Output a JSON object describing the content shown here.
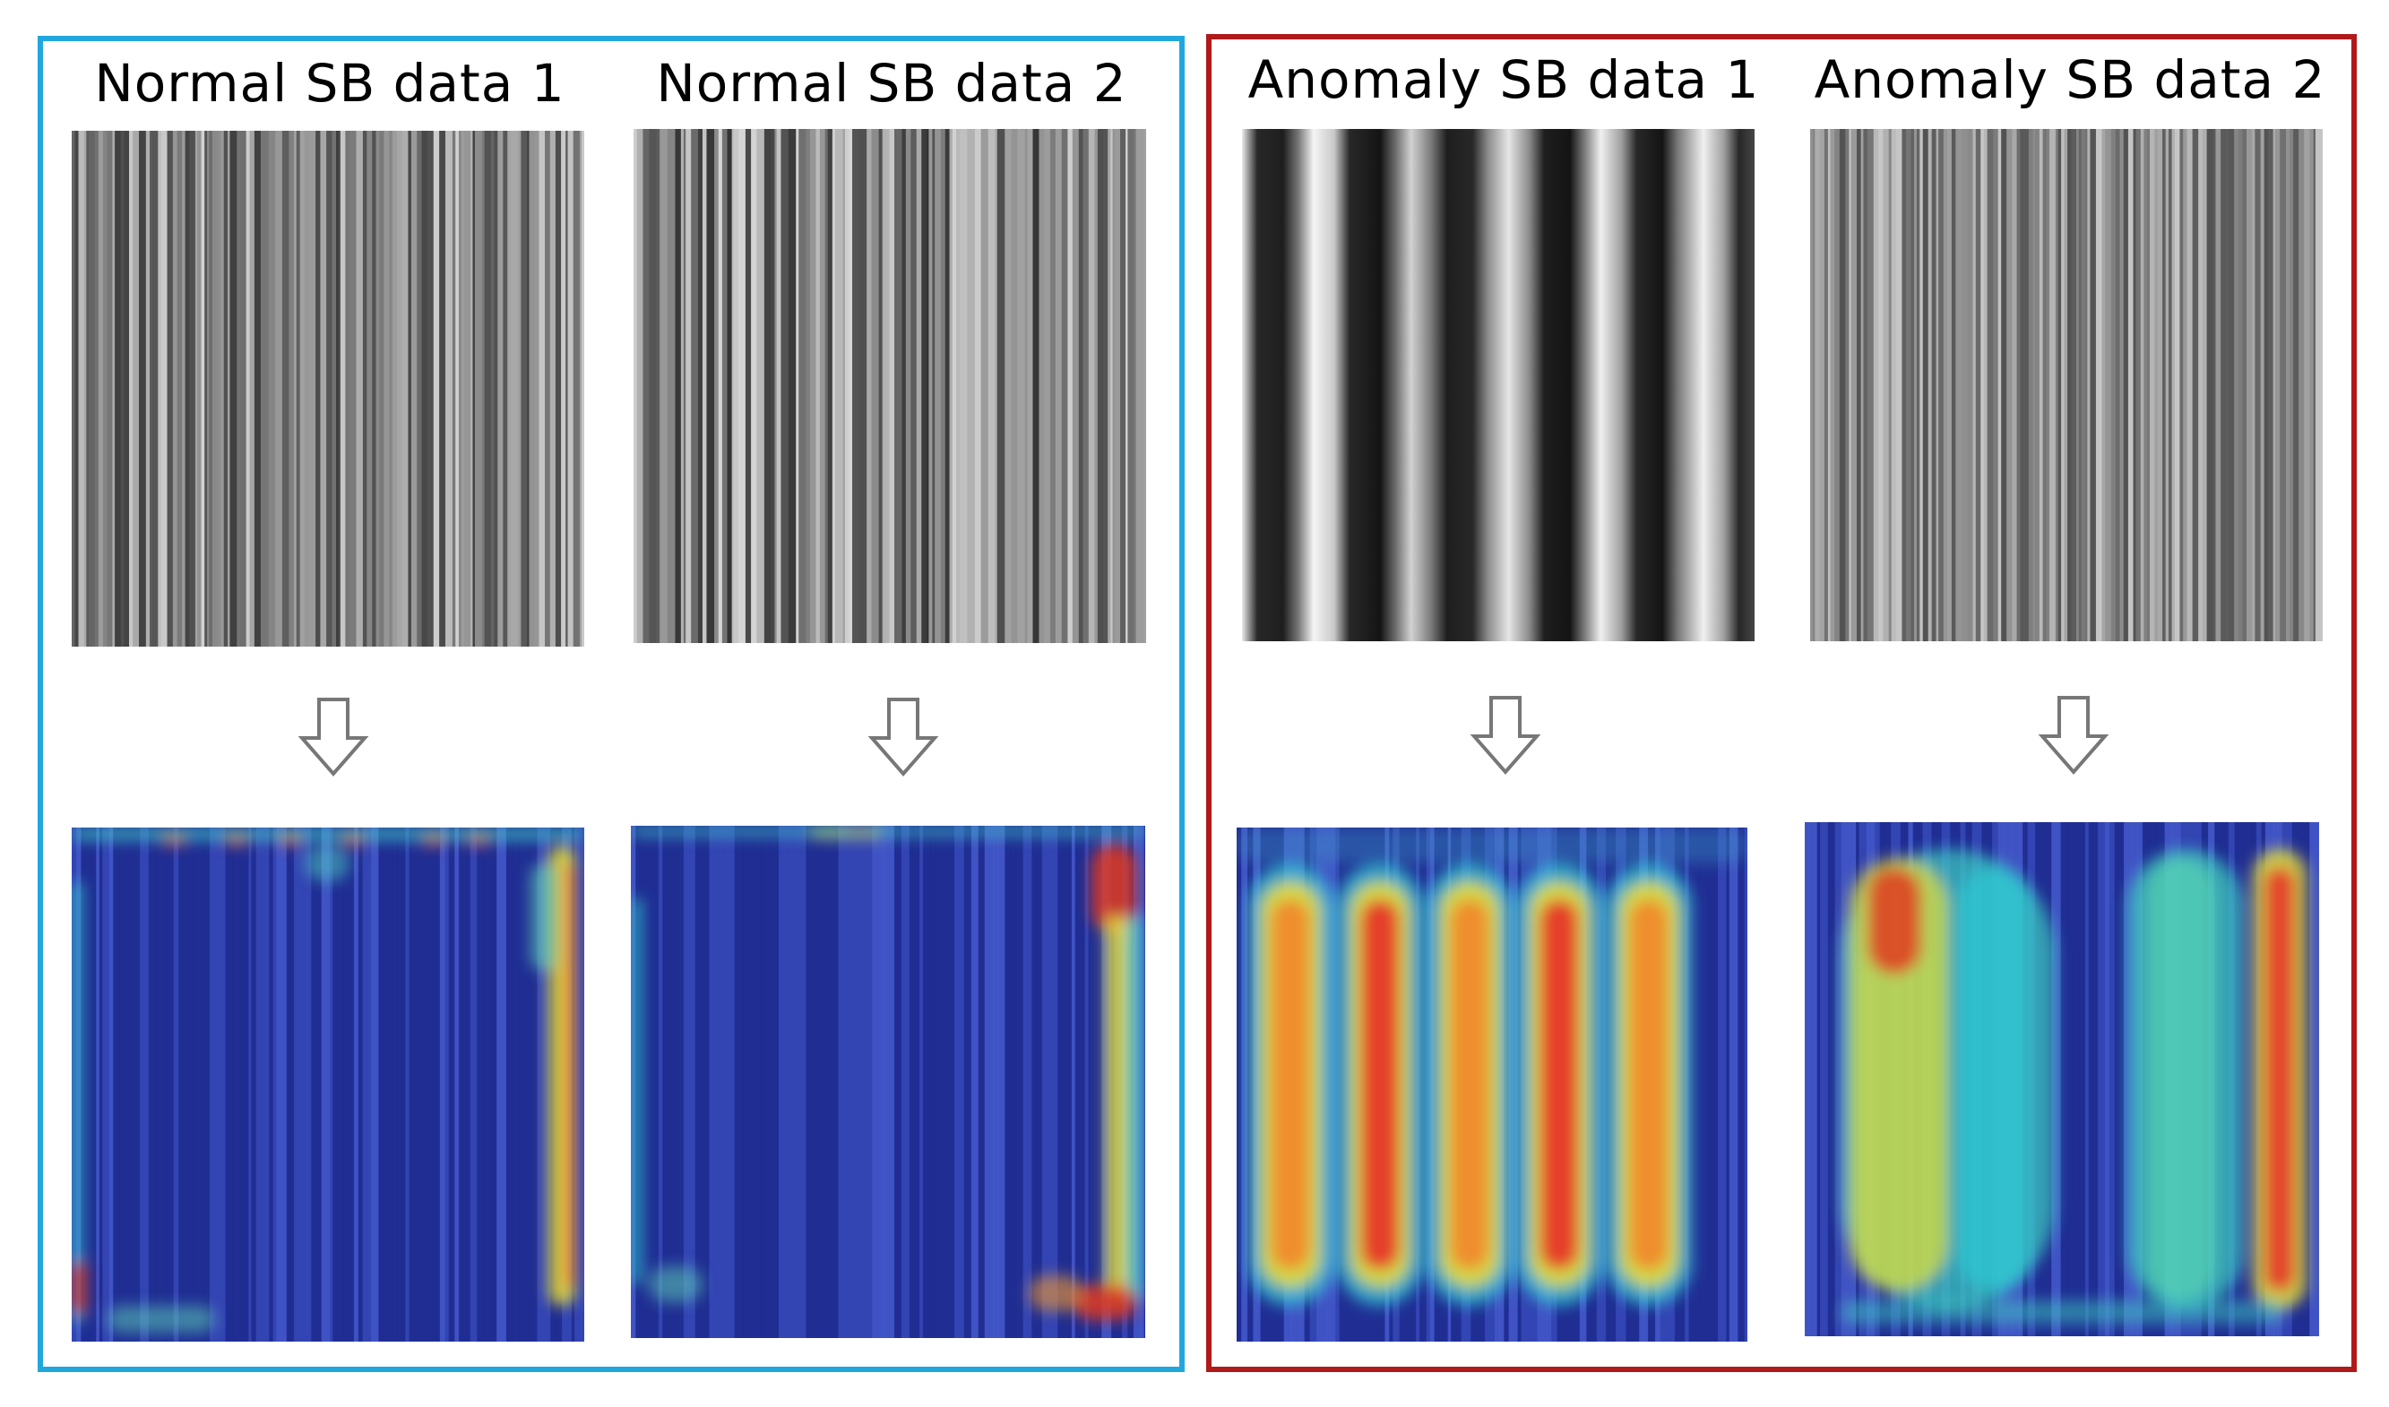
{
  "figure": {
    "groups": [
      {
        "name": "normal",
        "border_color": "#22a7dd"
      },
      {
        "name": "anomaly",
        "border_color": "#b01a1a"
      }
    ],
    "panels": [
      {
        "title": "Normal SB data 1",
        "group": "normal",
        "stripe_style": "fine-barcode",
        "heatmap_style": "edge-activation"
      },
      {
        "title": "Normal SB data 2",
        "group": "normal",
        "stripe_style": "fine-barcode",
        "heatmap_style": "edge-activation"
      },
      {
        "title": "Anomaly SB data 1",
        "group": "anomaly",
        "stripe_style": "wide-periodic",
        "heatmap_style": "periodic-columns"
      },
      {
        "title": "Anomaly SB data 2",
        "group": "anomaly",
        "stripe_style": "fine-barcode",
        "heatmap_style": "block-activation"
      }
    ],
    "arrow_icon": "down-arrow-icon"
  }
}
